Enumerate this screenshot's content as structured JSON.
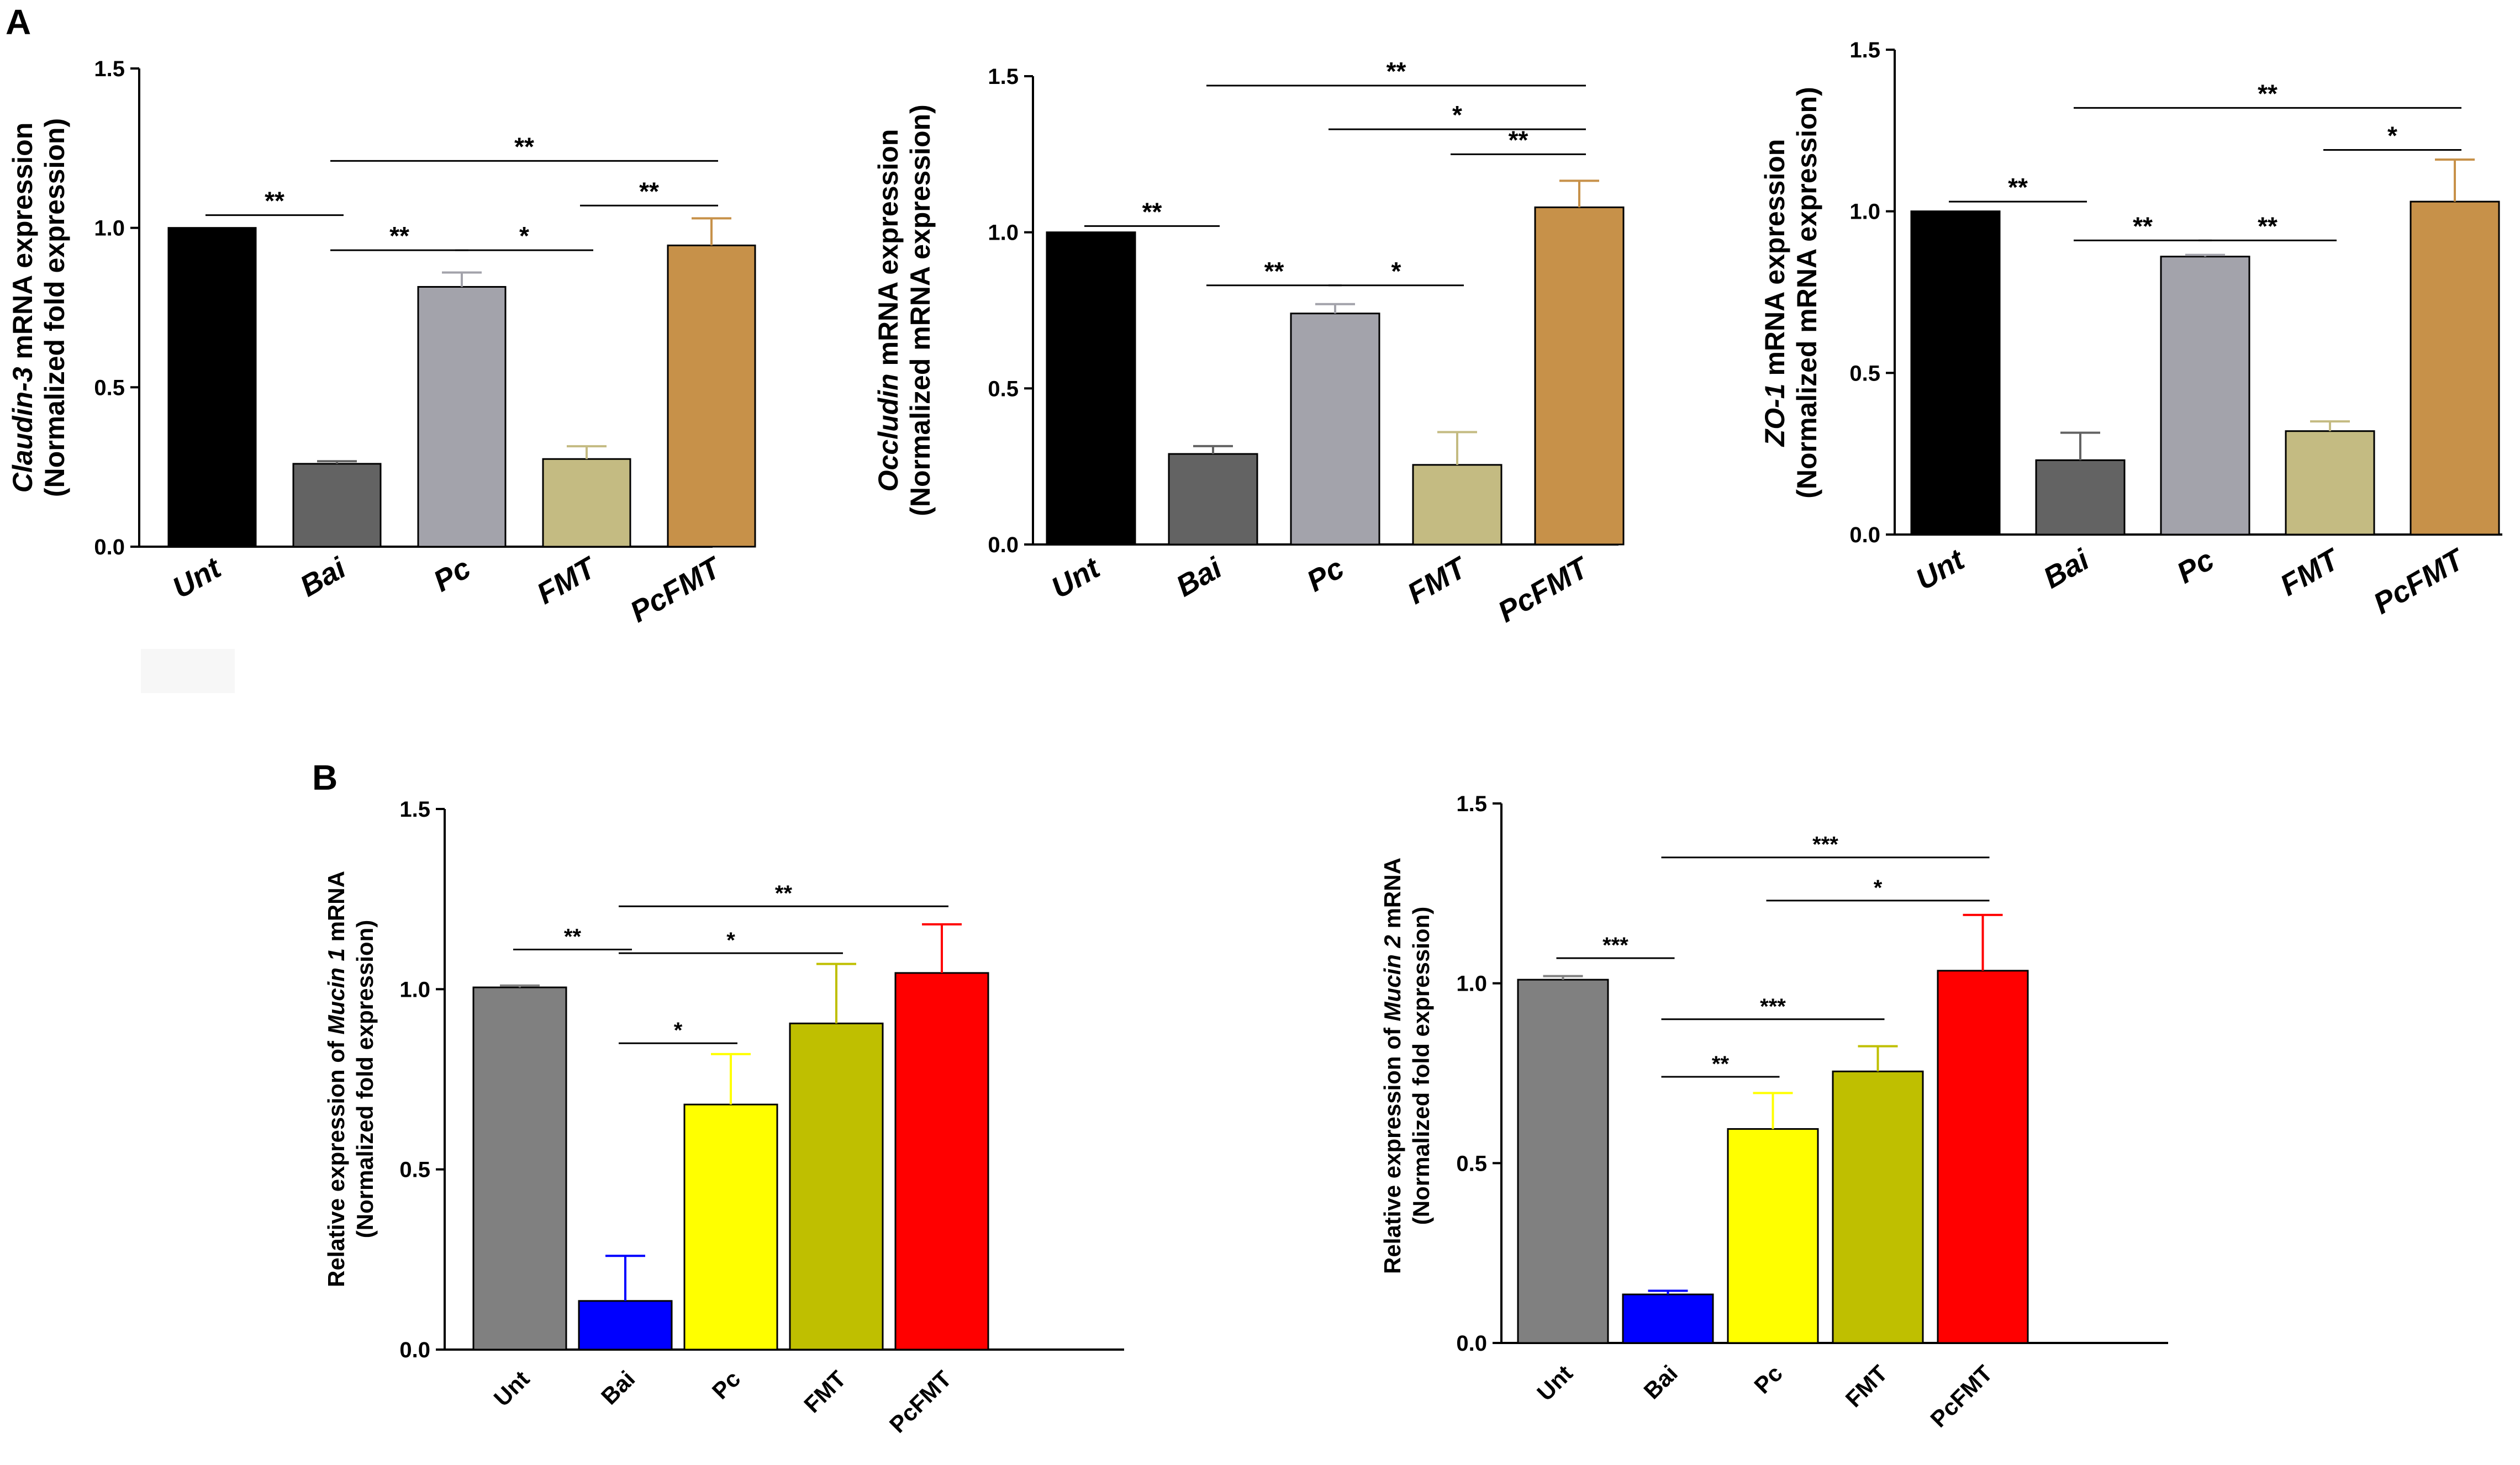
{
  "panel_labels": {
    "a": "A",
    "b": "B"
  },
  "chart_data": [
    {
      "id": "claudin3",
      "panel": "A",
      "type": "bar",
      "title": "",
      "ylabel_italic": "Claudin-3",
      "ylabel_rest": " mRNA expression",
      "ylabel_line2": "(Normalized fold expression)",
      "xlabel": "",
      "categories": [
        "Unt",
        "Bai",
        "Pc",
        "FMT",
        "PcFMT"
      ],
      "values": [
        1.0,
        0.26,
        0.815,
        0.275,
        0.945
      ],
      "errors": [
        0.0,
        0.008,
        0.045,
        0.04,
        0.085
      ],
      "colors": [
        "#000000",
        "#636363",
        "#a3a3ab",
        "#c4bb82",
        "#c79149"
      ],
      "ylim": [
        0,
        1.5
      ],
      "yticks": [
        "0.0",
        "0.5",
        "1.0",
        "1.5"
      ],
      "italic_categories": true,
      "significance": [
        {
          "from": 0,
          "to": 1,
          "y": 1.04,
          "label": "**"
        },
        {
          "from": 1,
          "to": 2,
          "y": 0.93,
          "label": "**"
        },
        {
          "from": 2,
          "to": 3,
          "y": 0.93,
          "label": "*"
        },
        {
          "from": 3,
          "to": 4,
          "y": 1.07,
          "label": "**"
        },
        {
          "from": 1,
          "to": 4,
          "y": 1.21,
          "label": "**"
        }
      ]
    },
    {
      "id": "occludin",
      "panel": "A",
      "type": "bar",
      "title": "",
      "ylabel_italic": "Occludin",
      "ylabel_rest": " mRNA expression",
      "ylabel_line2": "(Normalized mRNA expression)",
      "xlabel": "",
      "categories": [
        "Unt",
        "Bai",
        "Pc",
        "FMT",
        "PcFMT"
      ],
      "values": [
        1.0,
        0.29,
        0.74,
        0.255,
        1.08
      ],
      "errors": [
        0.0,
        0.025,
        0.03,
        0.105,
        0.085
      ],
      "colors": [
        "#000000",
        "#636363",
        "#a3a3ab",
        "#c4bb82",
        "#c79149"
      ],
      "ylim": [
        0,
        1.5
      ],
      "yticks": [
        "0.0",
        "0.5",
        "1.0",
        "1.5"
      ],
      "italic_categories": true,
      "significance": [
        {
          "from": 0,
          "to": 1,
          "y": 1.02,
          "label": "**"
        },
        {
          "from": 1,
          "to": 2,
          "y": 0.83,
          "label": "**"
        },
        {
          "from": 2,
          "to": 3,
          "y": 0.83,
          "label": "*"
        },
        {
          "from": 3,
          "to": 4,
          "y": 1.25,
          "label": "**"
        },
        {
          "from": 2,
          "to": 4,
          "y": 1.33,
          "label": "*"
        },
        {
          "from": 1,
          "to": 4,
          "y": 1.47,
          "label": "**"
        }
      ]
    },
    {
      "id": "zo1",
      "panel": "A",
      "type": "bar",
      "title": "",
      "ylabel_italic": "ZO-1",
      "ylabel_rest": " mRNA expression",
      "ylabel_line2": "(Normalized mRNA expression)",
      "xlabel": "",
      "categories": [
        "Unt",
        "Bai",
        "Pc",
        "FMT",
        "PcFMT"
      ],
      "values": [
        1.0,
        0.23,
        0.86,
        0.32,
        1.03
      ],
      "errors": [
        0.0,
        0.085,
        0.005,
        0.03,
        0.13
      ],
      "colors": [
        "#000000",
        "#636363",
        "#a3a3ab",
        "#c4bb82",
        "#c79149"
      ],
      "ylim": [
        0,
        1.5
      ],
      "yticks": [
        "0.0",
        "0.5",
        "1.0",
        "1.5"
      ],
      "italic_categories": true,
      "significance": [
        {
          "from": 0,
          "to": 1,
          "y": 1.03,
          "label": "**"
        },
        {
          "from": 1,
          "to": 2,
          "y": 0.91,
          "label": "**"
        },
        {
          "from": 2,
          "to": 3,
          "y": 0.91,
          "label": "**"
        },
        {
          "from": 3,
          "to": 4,
          "y": 1.19,
          "label": "*"
        },
        {
          "from": 1,
          "to": 4,
          "y": 1.32,
          "label": "**"
        }
      ]
    },
    {
      "id": "mucin1",
      "panel": "B",
      "type": "bar",
      "title": "",
      "ylabel_pre": "Relative expression of ",
      "ylabel_italic": "Mucin 1",
      "ylabel_rest": " mRNA",
      "ylabel_line2": "(Normalized fold expression)",
      "xlabel": "",
      "categories": [
        "Unt",
        "Bai",
        "Pc",
        "FMT",
        "PcFMT"
      ],
      "values": [
        1.005,
        0.135,
        0.68,
        0.905,
        1.045
      ],
      "errors": [
        0.005,
        0.125,
        0.14,
        0.165,
        0.135
      ],
      "colors": [
        "#808080",
        "#0000ff",
        "#ffff00",
        "#bfbf00",
        "#ff0000"
      ],
      "ylim": [
        0,
        1.5
      ],
      "yticks": [
        "0.0",
        "0.5",
        "1.0",
        "1.5"
      ],
      "italic_categories": false,
      "significance": [
        {
          "from": 0,
          "to": 1,
          "y": 1.11,
          "label": "**"
        },
        {
          "from": 1,
          "to": 2,
          "y": 0.85,
          "label": "*"
        },
        {
          "from": 1,
          "to": 3,
          "y": 1.1,
          "label": "*"
        },
        {
          "from": 1,
          "to": 4,
          "y": 1.23,
          "label": "**"
        }
      ]
    },
    {
      "id": "mucin2",
      "panel": "B",
      "type": "bar",
      "title": "",
      "ylabel_pre": "Relative expression of ",
      "ylabel_italic": "Mucin 2",
      "ylabel_rest": " mRNA",
      "ylabel_line2": "(Normalized fold expression)",
      "xlabel": "",
      "categories": [
        "Unt",
        "Bai",
        "Pc",
        "FMT",
        "PcFMT"
      ],
      "values": [
        1.01,
        0.135,
        0.595,
        0.755,
        1.035
      ],
      "errors": [
        0.01,
        0.01,
        0.1,
        0.07,
        0.155
      ],
      "colors": [
        "#808080",
        "#0000ff",
        "#ffff00",
        "#bfbf00",
        "#ff0000"
      ],
      "ylim": [
        0,
        1.5
      ],
      "yticks": [
        "0.0",
        "0.5",
        "1.0",
        "1.5"
      ],
      "italic_categories": false,
      "significance": [
        {
          "from": 0,
          "to": 1,
          "y": 1.07,
          "label": "***"
        },
        {
          "from": 1,
          "to": 2,
          "y": 0.74,
          "label": "**"
        },
        {
          "from": 1,
          "to": 3,
          "y": 0.9,
          "label": "***"
        },
        {
          "from": 2,
          "to": 4,
          "y": 1.23,
          "label": "*"
        },
        {
          "from": 1,
          "to": 4,
          "y": 1.35,
          "label": "***"
        }
      ]
    }
  ]
}
